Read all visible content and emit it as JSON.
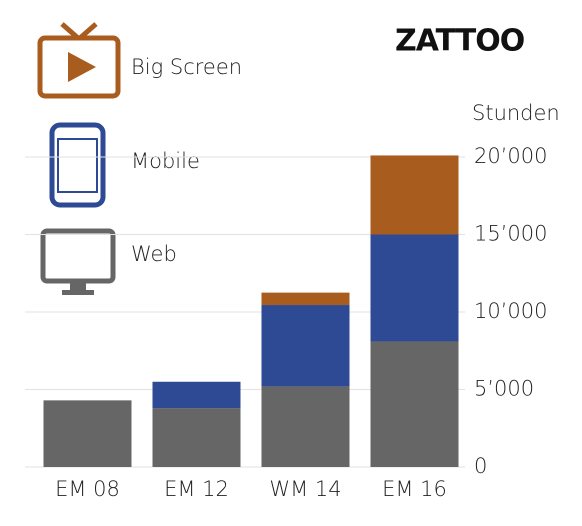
{
  "chart_data": {
    "type": "stacked-bar",
    "logo": "ZATTOO",
    "y_label": "Stunden",
    "categories": [
      "EM 08",
      "EM 12",
      "WM 14",
      "EM 16"
    ],
    "series": [
      {
        "name": "Web",
        "color": "#666666",
        "values": [
          4300,
          3800,
          5200,
          8100
        ]
      },
      {
        "name": "Mobile",
        "color": "#2e4a94",
        "values": [
          null,
          1700,
          5250,
          6900
        ]
      },
      {
        "name": "Big Screen",
        "color": "#a85c1e",
        "values": [
          null,
          null,
          800,
          5100
        ]
      }
    ],
    "ylim": [
      0,
      20000
    ],
    "yticks": [
      0,
      {
        "value": 5000,
        "label": "5’000"
      },
      {
        "value": 10000,
        "label": "10’000"
      },
      {
        "value": 15000,
        "label": "15’000"
      },
      {
        "value": 20000,
        "label": "20’000"
      }
    ],
    "grid": true
  }
}
